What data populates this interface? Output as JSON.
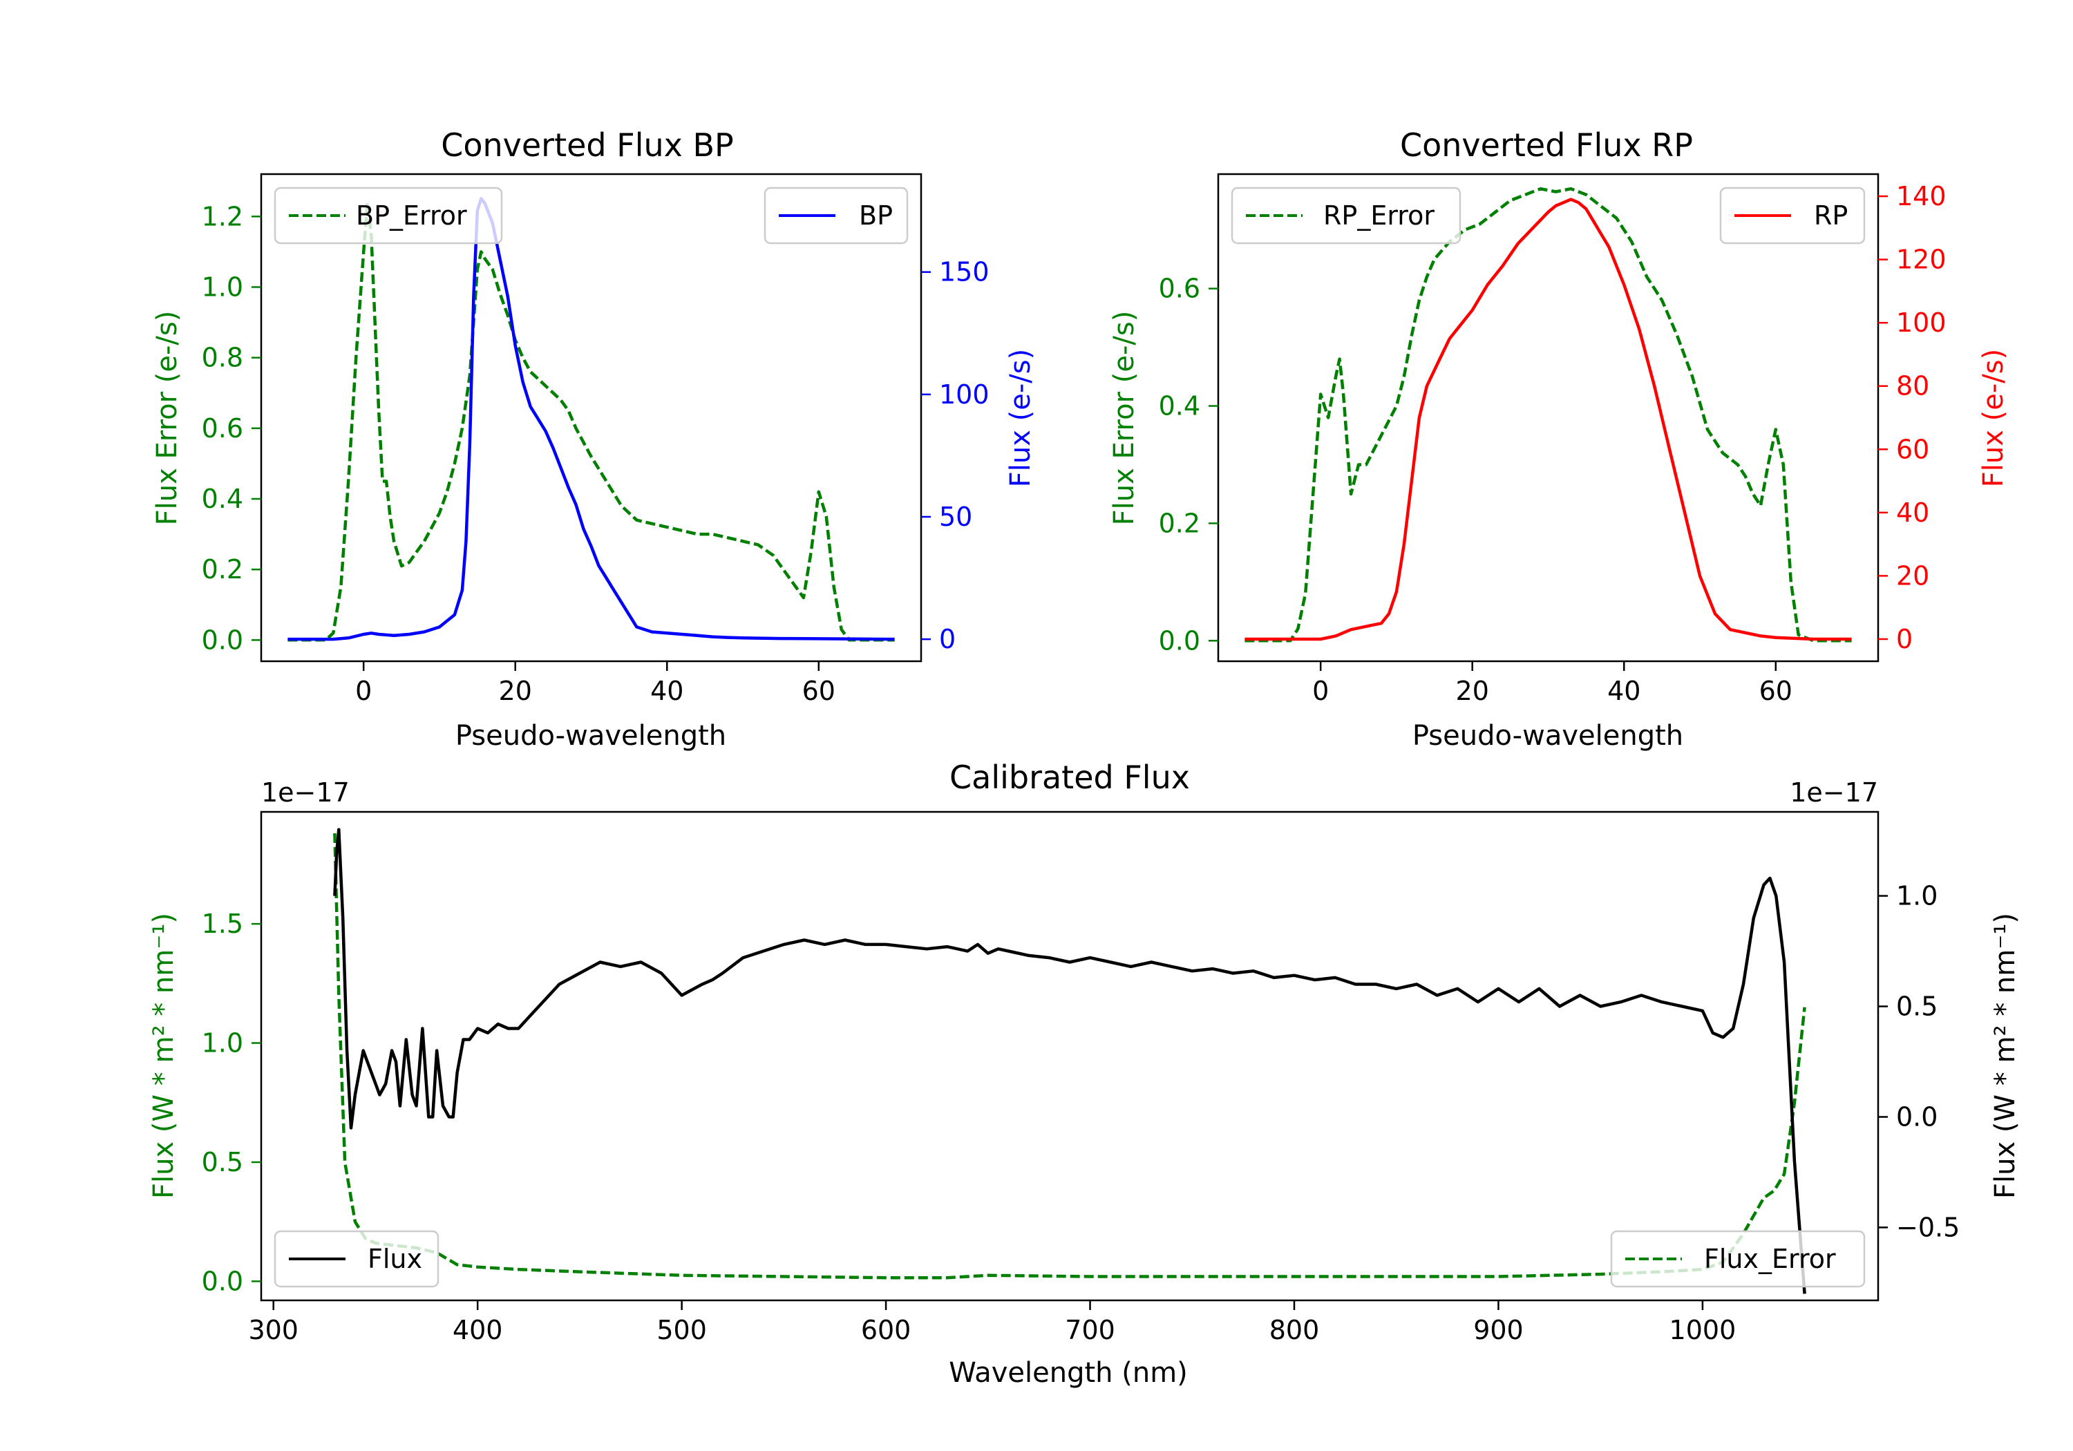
{
  "chart_data": [
    {
      "type": "line",
      "title": "Converted Flux BP",
      "xlabel": "Pseudo-wavelength",
      "ylabel_left": "Flux Error (e-/s)",
      "ylabel_right": "Flux (e-/s)",
      "xlim": [
        -13.5,
        73.5
      ],
      "ylim_left": [
        -0.06,
        1.32
      ],
      "ylim_right": [
        -9,
        190
      ],
      "xticks": [
        "0",
        "20",
        "40",
        "60"
      ],
      "yticks_left": [
        "0.0",
        "0.2",
        "0.4",
        "0.6",
        "0.8",
        "1.0",
        "1.2"
      ],
      "yticks_right": [
        "0",
        "50",
        "100",
        "150"
      ],
      "colors": {
        "left_axis": "#008000",
        "right_axis": "#0000ff"
      },
      "series": [
        {
          "name": "BP_Error",
          "axis": "left",
          "color": "#008000",
          "style": "dashed",
          "x": [
            -10,
            -5,
            -4,
            -3,
            -2,
            -1,
            0,
            0.5,
            1,
            2,
            2.5,
            3,
            3.5,
            4,
            5,
            6,
            7,
            8,
            9,
            10,
            11,
            12,
            13,
            14,
            15,
            15.5,
            16,
            17,
            18,
            19,
            20,
            21,
            22,
            23,
            24,
            25,
            26,
            27,
            28,
            30,
            32,
            34,
            36,
            38,
            40,
            42,
            44,
            46,
            48,
            50,
            52,
            54,
            56,
            57,
            58,
            59,
            60,
            61,
            62,
            63,
            64,
            65,
            70
          ],
          "values": [
            0,
            0,
            0.02,
            0.15,
            0.45,
            0.8,
            1.1,
            1.24,
            1.15,
            0.65,
            0.45,
            0.45,
            0.35,
            0.28,
            0.21,
            0.22,
            0.25,
            0.28,
            0.32,
            0.36,
            0.42,
            0.5,
            0.6,
            0.75,
            1.05,
            1.1,
            1.08,
            1.05,
            0.98,
            0.92,
            0.85,
            0.8,
            0.76,
            0.74,
            0.72,
            0.7,
            0.68,
            0.65,
            0.6,
            0.52,
            0.45,
            0.38,
            0.34,
            0.33,
            0.32,
            0.31,
            0.3,
            0.3,
            0.29,
            0.28,
            0.27,
            0.24,
            0.18,
            0.15,
            0.12,
            0.25,
            0.42,
            0.35,
            0.15,
            0.03,
            0,
            0,
            0
          ]
        },
        {
          "name": "BP",
          "axis": "right",
          "color": "#0000ff",
          "style": "solid",
          "x": [
            -10,
            -4,
            -2,
            0,
            1,
            2,
            4,
            6,
            8,
            10,
            12,
            13,
            13.5,
            14,
            14.5,
            15,
            15.5,
            16,
            17,
            18,
            19,
            20,
            21,
            22,
            23,
            24,
            25,
            26,
            27,
            28,
            29,
            30,
            31,
            32,
            33,
            34,
            35,
            36,
            38,
            40,
            42,
            44,
            46,
            48,
            50,
            55,
            60,
            65,
            70
          ],
          "values": [
            0,
            0,
            0.5,
            2,
            2.5,
            2,
            1.5,
            2,
            3,
            5,
            10,
            20,
            40,
            80,
            140,
            175,
            180,
            178,
            170,
            155,
            140,
            120,
            105,
            95,
            90,
            85,
            78,
            70,
            62,
            55,
            45,
            38,
            30,
            25,
            20,
            15,
            10,
            5,
            3,
            2.5,
            2,
            1.5,
            1,
            0.7,
            0.5,
            0.3,
            0.2,
            0.1,
            0
          ]
        }
      ],
      "legend": [
        {
          "label": "BP_Error",
          "position": "upper-left"
        },
        {
          "label": "BP",
          "position": "upper-right"
        }
      ]
    },
    {
      "type": "line",
      "title": "Converted Flux RP",
      "xlabel": "Pseudo-wavelength",
      "ylabel_left": "Flux Error (e-/s)",
      "ylabel_right": "Flux (e-/s)",
      "xlim": [
        -13.5,
        73.5
      ],
      "ylim_left": [
        -0.035,
        0.795
      ],
      "ylim_right": [
        -7,
        147
      ],
      "xticks": [
        "0",
        "20",
        "40",
        "60"
      ],
      "yticks_left": [
        "0.0",
        "0.2",
        "0.4",
        "0.6"
      ],
      "yticks_right": [
        "0",
        "20",
        "40",
        "60",
        "80",
        "100",
        "120",
        "140"
      ],
      "colors": {
        "left_axis": "#008000",
        "right_axis": "#ff0000"
      },
      "series": [
        {
          "name": "RP_Error",
          "axis": "left",
          "color": "#008000",
          "style": "dashed",
          "x": [
            -10,
            -4,
            -3,
            -2,
            -1,
            0,
            1,
            2,
            2.5,
            3,
            4,
            5,
            6,
            8,
            10,
            11,
            12,
            13,
            14,
            15,
            17,
            19,
            21,
            23,
            25,
            27,
            29,
            31,
            33,
            35,
            37,
            39,
            41,
            43,
            45,
            47,
            49,
            51,
            53,
            55,
            56,
            57,
            58,
            59,
            60,
            61,
            62,
            63,
            65,
            70
          ],
          "values": [
            0,
            0,
            0.02,
            0.08,
            0.25,
            0.42,
            0.38,
            0.45,
            0.48,
            0.42,
            0.25,
            0.3,
            0.3,
            0.35,
            0.4,
            0.45,
            0.52,
            0.58,
            0.62,
            0.65,
            0.68,
            0.7,
            0.71,
            0.73,
            0.75,
            0.76,
            0.77,
            0.765,
            0.77,
            0.76,
            0.74,
            0.72,
            0.68,
            0.62,
            0.58,
            0.52,
            0.45,
            0.36,
            0.32,
            0.3,
            0.28,
            0.25,
            0.23,
            0.3,
            0.36,
            0.3,
            0.1,
            0.01,
            0,
            0
          ]
        },
        {
          "name": "RP",
          "axis": "right",
          "color": "#ff0000",
          "style": "solid",
          "x": [
            -10,
            -4,
            0,
            2,
            4,
            6,
            8,
            9,
            10,
            11,
            12,
            13,
            14,
            15,
            16,
            17,
            18,
            20,
            22,
            24,
            26,
            28,
            30,
            31,
            32,
            33,
            34,
            35,
            36,
            37,
            38,
            39,
            40,
            42,
            44,
            46,
            48,
            50,
            52,
            54,
            56,
            58,
            60,
            65,
            70
          ],
          "values": [
            0,
            0,
            0,
            1,
            3,
            4,
            5,
            8,
            15,
            30,
            50,
            70,
            80,
            85,
            90,
            95,
            98,
            104,
            112,
            118,
            125,
            130,
            135,
            137,
            138,
            139,
            138,
            136,
            132,
            128,
            124,
            118,
            112,
            98,
            80,
            60,
            40,
            20,
            8,
            3,
            2,
            1,
            0.5,
            0,
            0
          ]
        }
      ],
      "legend": [
        {
          "label": "RP_Error",
          "position": "upper-left"
        },
        {
          "label": "RP",
          "position": "upper-right"
        }
      ]
    },
    {
      "type": "line",
      "title": "Calibrated Flux",
      "xlabel": "Wavelength (nm)",
      "ylabel_left": "Flux (W * m² * nm⁻¹)",
      "ylabel_right": "Flux (W * m² * nm⁻¹)",
      "offset_left": "1e−17",
      "offset_right": "1e−17",
      "xlim": [
        294,
        1086
      ],
      "ylim_left": [
        -0.08,
        1.97
      ],
      "ylim_right": [
        -0.83,
        1.38
      ],
      "xticks": [
        "300",
        "400",
        "500",
        "600",
        "700",
        "800",
        "900",
        "1000"
      ],
      "yticks_left": [
        "0.0",
        "0.5",
        "1.0",
        "1.5"
      ],
      "yticks_right": [
        "−0.5",
        "0.0",
        "0.5",
        "1.0"
      ],
      "colors": {
        "left_axis": "#008000",
        "right_axis": "#000000"
      },
      "series": [
        {
          "name": "Flux_Error",
          "axis": "left",
          "color": "#008000",
          "style": "dashed",
          "x": [
            330,
            332,
            335,
            340,
            345,
            350,
            360,
            370,
            380,
            390,
            400,
            420,
            450,
            500,
            550,
            600,
            630,
            640,
            650,
            700,
            750,
            800,
            900,
            950,
            980,
            1000,
            1010,
            1020,
            1030,
            1035,
            1040,
            1045,
            1050
          ],
          "values": [
            1.88,
            1.2,
            0.5,
            0.25,
            0.18,
            0.16,
            0.15,
            0.14,
            0.12,
            0.07,
            0.06,
            0.05,
            0.04,
            0.025,
            0.02,
            0.015,
            0.015,
            0.02,
            0.025,
            0.02,
            0.02,
            0.02,
            0.02,
            0.03,
            0.04,
            0.05,
            0.08,
            0.2,
            0.35,
            0.38,
            0.45,
            0.75,
            1.15
          ]
        },
        {
          "name": "Flux",
          "axis": "right",
          "color": "#000000",
          "style": "solid",
          "x": [
            330,
            331,
            332,
            334,
            336,
            338,
            340,
            342,
            344,
            346,
            350,
            352,
            355,
            358,
            360,
            362,
            365,
            368,
            370,
            373,
            376,
            378,
            380,
            383,
            386,
            388,
            390,
            393,
            396,
            400,
            405,
            410,
            415,
            420,
            425,
            430,
            440,
            450,
            460,
            470,
            480,
            490,
            500,
            510,
            515,
            520,
            530,
            540,
            550,
            560,
            570,
            580,
            590,
            600,
            610,
            620,
            630,
            640,
            645,
            650,
            655,
            660,
            670,
            680,
            690,
            700,
            710,
            720,
            730,
            740,
            750,
            760,
            770,
            780,
            790,
            800,
            810,
            820,
            830,
            840,
            850,
            860,
            870,
            880,
            890,
            900,
            910,
            920,
            930,
            940,
            950,
            960,
            970,
            980,
            990,
            1000,
            1005,
            1010,
            1015,
            1020,
            1025,
            1030,
            1033,
            1036,
            1040,
            1045,
            1050
          ],
          "values": [
            1.0,
            1.2,
            1.3,
            0.9,
            0.3,
            -0.05,
            0.1,
            0.2,
            0.3,
            0.25,
            0.15,
            0.1,
            0.15,
            0.3,
            0.25,
            0.05,
            0.35,
            0.1,
            0.05,
            0.4,
            0.0,
            0.0,
            0.3,
            0.05,
            0.0,
            0.0,
            0.2,
            0.35,
            0.35,
            0.4,
            0.38,
            0.42,
            0.4,
            0.4,
            0.45,
            0.5,
            0.6,
            0.65,
            0.7,
            0.68,
            0.7,
            0.65,
            0.55,
            0.6,
            0.62,
            0.65,
            0.72,
            0.75,
            0.78,
            0.8,
            0.78,
            0.8,
            0.78,
            0.78,
            0.77,
            0.76,
            0.77,
            0.75,
            0.78,
            0.74,
            0.76,
            0.75,
            0.73,
            0.72,
            0.7,
            0.72,
            0.7,
            0.68,
            0.7,
            0.68,
            0.66,
            0.67,
            0.65,
            0.66,
            0.63,
            0.64,
            0.62,
            0.63,
            0.6,
            0.6,
            0.58,
            0.6,
            0.55,
            0.58,
            0.52,
            0.58,
            0.52,
            0.58,
            0.5,
            0.55,
            0.5,
            0.52,
            0.55,
            0.52,
            0.5,
            0.48,
            0.38,
            0.36,
            0.4,
            0.6,
            0.9,
            1.05,
            1.08,
            1.0,
            0.7,
            -0.2,
            -0.8
          ]
        }
      ],
      "legend": [
        {
          "label": "Flux",
          "position": "lower-left"
        },
        {
          "label": "Flux_Error",
          "position": "lower-right"
        }
      ]
    }
  ]
}
